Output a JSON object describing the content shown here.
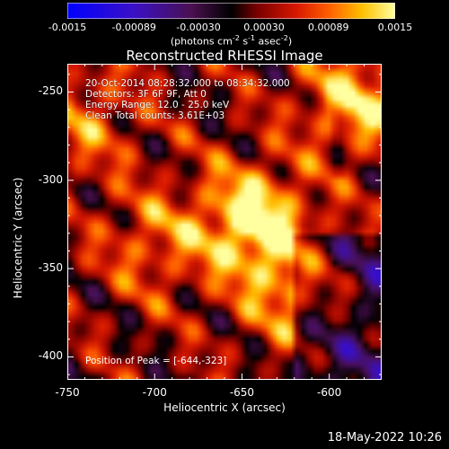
{
  "title": "Reconstructed RHESSI Image",
  "colorbar": {
    "tick_labels": [
      "-0.0015",
      "-0.00089",
      "-0.00030",
      "0.00030",
      "0.00089",
      "0.0015"
    ],
    "range": [
      -0.0015,
      0.0015
    ],
    "units_prefix": "(photons cm",
    "units_exp1": "-2",
    "units_mid": " s",
    "units_exp2": "-1",
    "units_mid2": " asec",
    "units_exp3": "-2",
    "units_suffix": ")"
  },
  "info": {
    "line1": "20-Oct-2014 08:28:32.000 to 08:34:32.000",
    "line2": "Detectors: 3F 6F 9F, Att 0",
    "line3": "Energy Range: 12.0 - 25.0 keV",
    "line4": "Clean    Total counts: 3.61E+03",
    "peak": "Position of Peak = [-644,-323]"
  },
  "footer": "18-May-2022 10:26",
  "chart_data": {
    "type": "heatmap",
    "title": "Reconstructed RHESSI Image",
    "xlabel": "Heliocentric X (arcsec)",
    "ylabel": "Heliocentric Y (arcsec)",
    "xlim": [
      -750,
      -570
    ],
    "ylim": [
      -413,
      -234
    ],
    "x_ticks": [
      -750,
      -700,
      -650,
      -600
    ],
    "x_tick_labels": [
      "-750",
      "-700",
      "-650",
      "-600"
    ],
    "y_ticks": [
      -400,
      -350,
      -300,
      -250
    ],
    "y_tick_labels": [
      "-400",
      "-350",
      "-300",
      "-250"
    ],
    "colormap": "rhessi-blue-red-yellow",
    "peak_position": [
      -644,
      -323
    ],
    "bright_sources": [
      {
        "x": -644,
        "y": -323,
        "intensity": 1.0
      },
      {
        "x": -585,
        "y": -255,
        "intensity": 0.75
      },
      {
        "x": -620,
        "y": -362,
        "intensity": 0.6
      },
      {
        "x": -740,
        "y": -265,
        "intensity": 0.45
      },
      {
        "x": -700,
        "y": -335,
        "intensity": 0.45
      }
    ]
  }
}
